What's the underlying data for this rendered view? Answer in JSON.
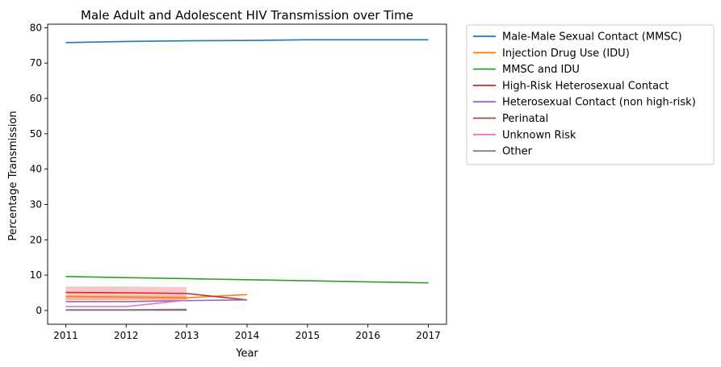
{
  "chart_data": {
    "type": "line",
    "title": "Male Adult and Adolescent HIV Transmission over Time",
    "xlabel": "Year",
    "ylabel": "Percentage Transmission",
    "xlim": [
      2010.7,
      2017.3
    ],
    "ylim": [
      -3.9,
      81.0
    ],
    "xticks": [
      2011,
      2012,
      2013,
      2014,
      2015,
      2016,
      2017
    ],
    "yticks": [
      0,
      10,
      20,
      30,
      40,
      50,
      60,
      70,
      80
    ],
    "grid": false,
    "legend_position": "outside-top-right",
    "series": [
      {
        "name": "Male-Male Sexual Contact (MMSC)",
        "color": "#1f77b4",
        "x": [
          2011,
          2012,
          2013,
          2014,
          2015,
          2016,
          2017
        ],
        "y": [
          75.8,
          76.1,
          76.3,
          76.4,
          76.6,
          76.6,
          76.6
        ]
      },
      {
        "name": "Injection Drug Use (IDU)",
        "color": "#ff7f0e",
        "x": [
          2011,
          2012,
          2013,
          2014
        ],
        "y": [
          4.0,
          3.8,
          3.6,
          4.5
        ],
        "band": {
          "x": [
            2011,
            2012,
            2013
          ],
          "lower": [
            2.8,
            2.8,
            2.8
          ],
          "upper": [
            4.2,
            4.2,
            4.2
          ]
        }
      },
      {
        "name": "MMSC and IDU",
        "color": "#2ca02c",
        "x": [
          2011,
          2012,
          2013,
          2014,
          2015,
          2016,
          2017
        ],
        "y": [
          9.6,
          9.3,
          9.0,
          8.7,
          8.4,
          8.1,
          7.8
        ]
      },
      {
        "name": "High-Risk Heterosexual Contact",
        "color": "#d62728",
        "x": [
          2011,
          2012,
          2013,
          2014
        ],
        "y": [
          5.1,
          5.0,
          4.8,
          3.0
        ],
        "band": {
          "x": [
            2011,
            2012,
            2013
          ],
          "lower": [
            3.0,
            3.0,
            3.0
          ],
          "upper": [
            6.8,
            6.8,
            6.6
          ]
        }
      },
      {
        "name": "Heterosexual Contact (non high-risk)",
        "color": "#9467bd",
        "x": [
          2011,
          2012,
          2013,
          2014
        ],
        "y": [
          2.5,
          2.5,
          2.8,
          3.0
        ]
      },
      {
        "name": "Perinatal",
        "color": "#8c564b",
        "x": [
          2011,
          2012,
          2013
        ],
        "y": [
          0.1,
          0.1,
          0.1
        ]
      },
      {
        "name": "Unknown Risk",
        "color": "#e377c2",
        "x": [
          2011,
          2012,
          2013
        ],
        "y": [
          1.1,
          1.1,
          2.9
        ]
      },
      {
        "name": "Other",
        "color": "#7f7f7f",
        "x": [
          2011,
          2012,
          2013
        ],
        "y": [
          0.2,
          0.2,
          0.3
        ]
      }
    ]
  }
}
